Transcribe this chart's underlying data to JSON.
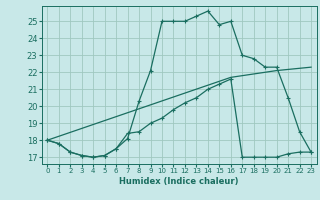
{
  "xlabel": "Humidex (Indice chaleur)",
  "background_color": "#c8e8e8",
  "grid_color": "#a0c8c0",
  "line_color": "#1a6e60",
  "xlim": [
    -0.5,
    23.5
  ],
  "ylim": [
    16.6,
    25.9
  ],
  "xticks": [
    0,
    1,
    2,
    3,
    4,
    5,
    6,
    7,
    8,
    9,
    10,
    11,
    12,
    13,
    14,
    15,
    16,
    17,
    18,
    19,
    20,
    21,
    22,
    23
  ],
  "yticks": [
    17,
    18,
    19,
    20,
    21,
    22,
    23,
    24,
    25
  ],
  "line1_x": [
    0,
    1,
    2,
    3,
    4,
    5,
    6,
    7,
    8,
    9,
    10,
    11,
    12,
    13,
    14,
    15,
    16,
    17,
    18,
    19,
    20,
    21,
    22,
    23
  ],
  "line1_y": [
    18.0,
    17.8,
    17.3,
    17.1,
    17.0,
    17.1,
    17.5,
    18.1,
    20.3,
    22.1,
    25.0,
    25.0,
    25.0,
    25.3,
    25.6,
    24.8,
    25.0,
    23.0,
    22.8,
    22.3,
    22.3,
    20.5,
    18.5,
    17.3
  ],
  "line2_x": [
    0,
    1,
    2,
    3,
    4,
    5,
    6,
    7,
    8,
    9,
    10,
    11,
    12,
    13,
    14,
    15,
    16,
    17,
    18,
    19,
    20,
    21,
    22,
    23
  ],
  "line2_y": [
    18.0,
    17.8,
    17.3,
    17.1,
    17.0,
    17.1,
    17.5,
    18.4,
    18.5,
    19.0,
    19.3,
    19.8,
    20.2,
    20.5,
    21.0,
    21.3,
    21.6,
    17.0,
    17.0,
    17.0,
    17.0,
    17.2,
    17.3,
    17.3
  ],
  "line3_x": [
    0,
    16,
    20,
    23
  ],
  "line3_y": [
    18.0,
    21.7,
    22.1,
    22.3
  ]
}
